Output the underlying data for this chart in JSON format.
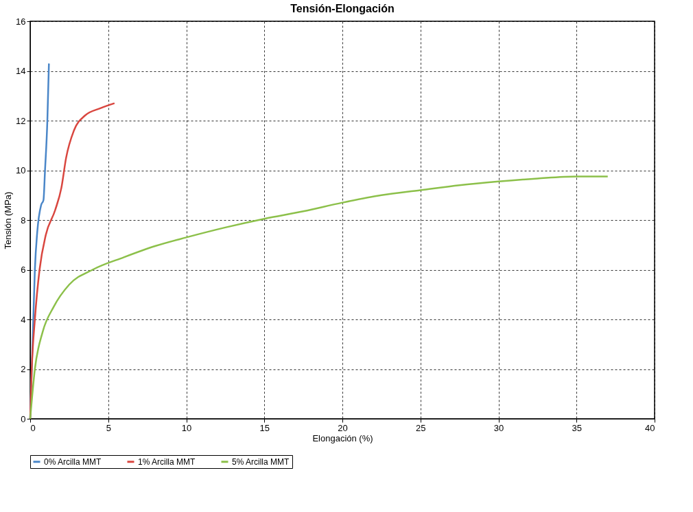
{
  "chart_data": {
    "type": "line",
    "title": "Tensión-Elongación",
    "xlabel": "Elongación (%)",
    "ylabel": "Tensión (MPa)",
    "xlim": [
      0,
      40
    ],
    "xticks": [
      0,
      5,
      10,
      15,
      20,
      25,
      30,
      35,
      40
    ],
    "ylim": [
      0,
      16
    ],
    "yticks": [
      0,
      2,
      4,
      6,
      8,
      10,
      12,
      14,
      16
    ],
    "grid": true,
    "legend": "bottom",
    "marker": "none",
    "line_style": "solid",
    "series": [
      {
        "name": "0% Arcilla MMT",
        "color": "#4a86c8",
        "x": [
          0,
          0.1,
          0.2,
          0.3,
          0.45,
          0.7,
          0.85,
          0.95,
          1.1,
          1.2
        ],
        "values": [
          0,
          2,
          4,
          6,
          7.5,
          8.6,
          8.8,
          10,
          12,
          14.3
        ]
      },
      {
        "name": "1% Arcilla MMT",
        "color": "#d9463f",
        "x": [
          0,
          0.1,
          0.3,
          0.6,
          1.0,
          1.6,
          2.0,
          2.3,
          2.8,
          3.5,
          4.5,
          5.4
        ],
        "values": [
          0,
          2,
          4,
          6,
          7.4,
          8.4,
          9.3,
          10.5,
          11.6,
          12.2,
          12.5,
          12.7
        ]
      },
      {
        "name": "5% Arcilla MMT",
        "color": "#8cc04a",
        "x": [
          0,
          0.3,
          0.8,
          1.5,
          2.5,
          4,
          6,
          8,
          10,
          12.5,
          15,
          17.5,
          20,
          22.5,
          25,
          27.5,
          30,
          32.5,
          35,
          37
        ],
        "values": [
          0,
          2,
          3.5,
          4.5,
          5.4,
          6,
          6.5,
          6.95,
          7.3,
          7.7,
          8.05,
          8.35,
          8.7,
          9.0,
          9.2,
          9.4,
          9.55,
          9.67,
          9.75,
          9.75
        ]
      }
    ]
  }
}
